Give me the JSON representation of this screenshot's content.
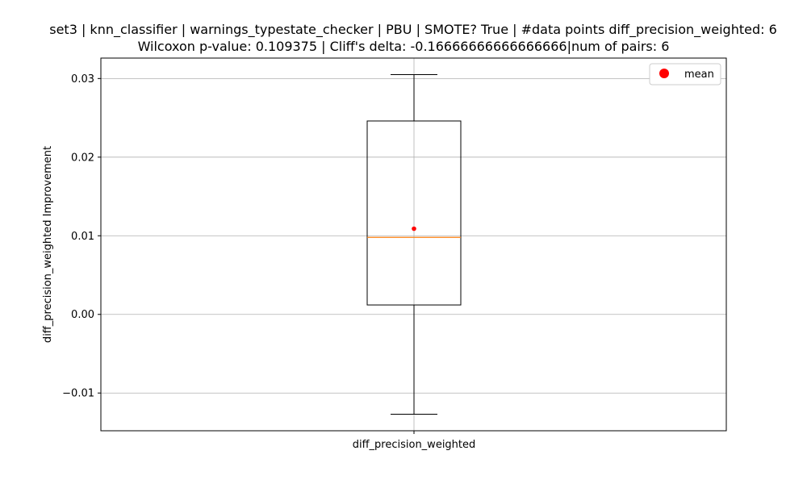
{
  "chart_data": {
    "type": "box",
    "title_line1": "set3 | knn_classifier | warnings_typestate_checker | PBU | SMOTE? True | #data points diff_precision_weighted: 6",
    "title_line2": "Wilcoxon p-value: 0.109375 | Cliff's delta: -0.16666666666666666|num of pairs: 6",
    "xlabel": "",
    "ylabel": "diff_precision_weighted Improvement",
    "categories": [
      "diff_precision_weighted"
    ],
    "box": {
      "whisker_low": -0.0127,
      "q1": 0.0012,
      "median": 0.0098,
      "q3": 0.0246,
      "whisker_high": 0.0305,
      "mean": 0.0109
    },
    "ylim": [
      -0.0148,
      0.0326
    ],
    "yticks": [
      -0.01,
      0.0,
      0.01,
      0.02,
      0.03
    ],
    "ytick_labels": [
      "−0.01",
      "0.00",
      "0.01",
      "0.02",
      "0.03"
    ],
    "grid": true,
    "legend": {
      "placement": "top-right",
      "entries": [
        "mean"
      ]
    },
    "colors": {
      "median": "#ff7f0e",
      "mean": "#ff0000",
      "box": "#000000",
      "grid": "#b0b0b0"
    }
  }
}
